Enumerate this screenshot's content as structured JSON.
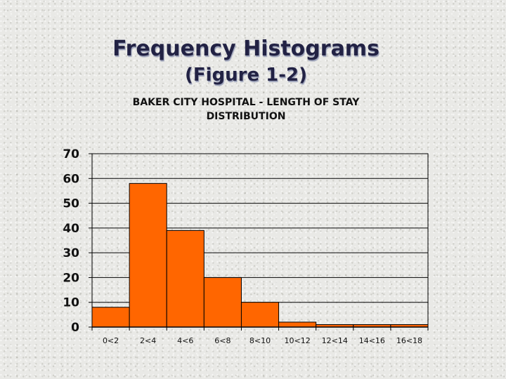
{
  "slide": {
    "title": "Frequency Histograms",
    "subtitle": "(Figure 1-2)"
  },
  "chart_data": {
    "type": "bar",
    "title_line1": "BAKER CITY HOSPITAL - LENGTH OF STAY",
    "title_line2": "DISTRIBUTION",
    "xlabel": "",
    "ylabel": "",
    "categories": [
      "0<2",
      "2<4",
      "4<6",
      "6<8",
      "8<10",
      "10<12",
      "12<14",
      "14<16",
      "16<18"
    ],
    "values": [
      8,
      58,
      39,
      20,
      10,
      2,
      1,
      1,
      1
    ],
    "ylim": [
      0,
      70
    ],
    "yticks": [
      0,
      10,
      20,
      30,
      40,
      50,
      60,
      70
    ],
    "grid": true,
    "legend": "none",
    "bar_color": "#ff6600",
    "bar_edge_color": "#000000"
  }
}
